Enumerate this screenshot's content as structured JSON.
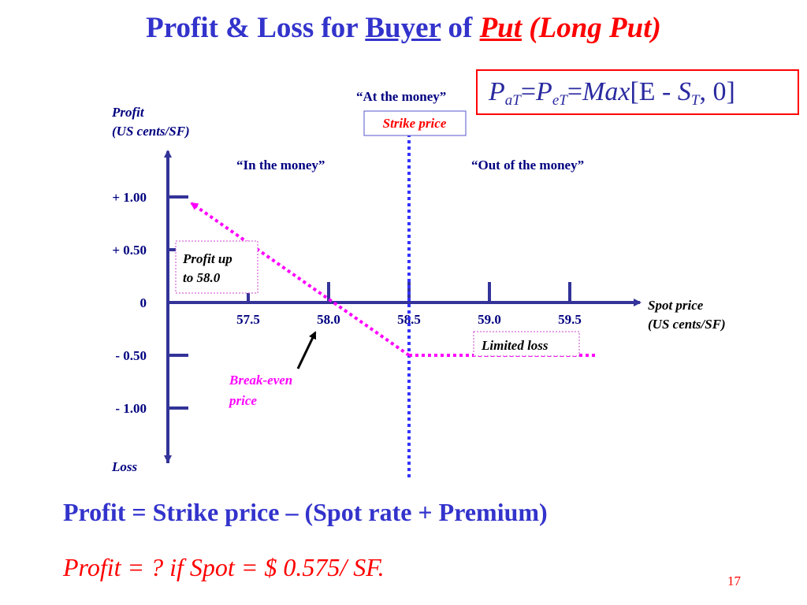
{
  "slide": {
    "title_parts": [
      "Profit & Loss for ",
      "Buyer",
      " of ",
      "Put",
      " (Long Put)"
    ],
    "formula": {
      "p": "P",
      "sub_at": "aT",
      "eq1": "=",
      "sub_et": "eT",
      "eq2": "=",
      "max": "Max",
      "bracket_body": "[E - ",
      "s": "S",
      "sub_t": "T",
      "tail": ", 0]"
    },
    "bottom_line1": "Profit = Strike price – (Spot rate + Premium)",
    "bottom_line2": "Profit = ? if Spot = $ 0.575/ SF.",
    "slide_number": "17"
  },
  "chart_data": {
    "type": "line",
    "ylabel_lines": [
      "Profit",
      "(US cents/SF)"
    ],
    "ylabel_bottom": "Loss",
    "xlabel_lines": [
      "Spot price",
      "(US cents/SF)"
    ],
    "x_ticks": [
      57.5,
      58.0,
      58.5,
      59.0,
      59.5
    ],
    "x_tick_labels": [
      "57.5",
      "58.0",
      "58.5",
      "59.0",
      "59.5"
    ],
    "y_ticks": [
      1.0,
      0.5,
      0,
      -0.5,
      -1.0
    ],
    "y_tick_labels": [
      "+ 1.00",
      "+ 0.50",
      "0",
      "- 0.50",
      "- 1.00"
    ],
    "xlim": [
      57.0,
      60.0
    ],
    "ylim": [
      -1.4,
      1.45
    ],
    "strike": 58.5,
    "series": [
      {
        "values": [
          [
            57.0,
            1.0
          ],
          [
            58.5,
            -0.5
          ],
          [
            59.85,
            -0.5
          ]
        ],
        "color": "#ff00ff"
      }
    ],
    "annotations": {
      "at_the_money": "“At the money”",
      "strike_price": "Strike price",
      "in_the_money": "“In the money”",
      "out_of_the_money": "“Out of the money”",
      "profit_up_lines": [
        "Profit up",
        "to 58.0"
      ],
      "limited_loss": "Limited loss",
      "break_even_lines": [
        "Break-even",
        "price"
      ]
    },
    "colors": {
      "axis": "#333399",
      "strike_line": "#3333ff",
      "payoff": "#ff00ff",
      "text_dark": "#000080",
      "accent_red": "#ff0000",
      "box_border": "#cc44cc"
    }
  }
}
